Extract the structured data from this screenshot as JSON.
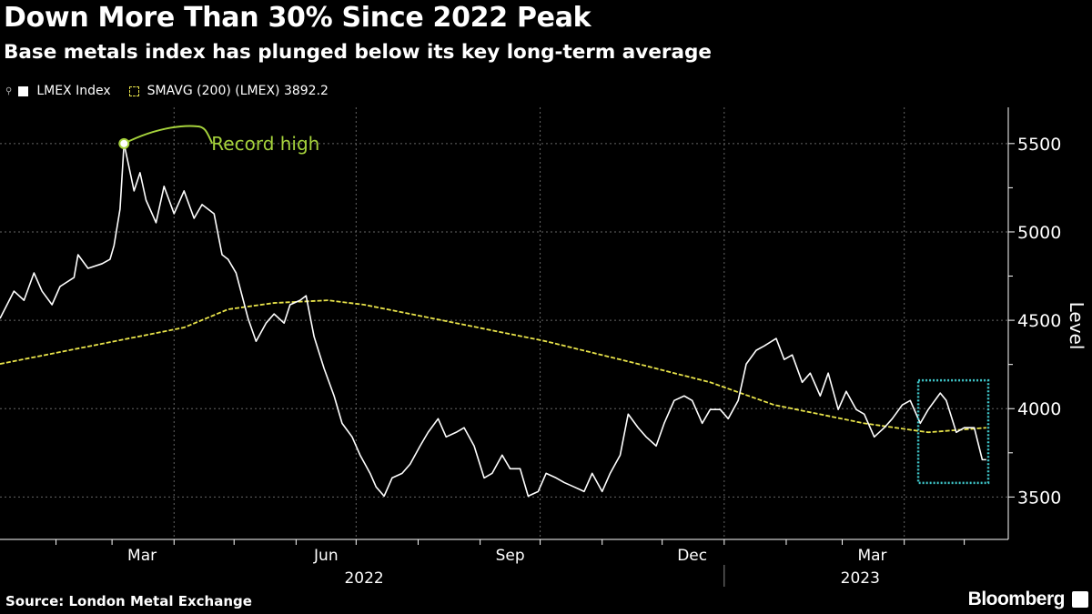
{
  "header": {
    "title": "Down More Than 30% Since 2022 Peak",
    "subtitle": "Base metals index has plunged below its key long-term average"
  },
  "footer": {
    "source": "Source: London Metal Exchange",
    "brand": "Bloomberg"
  },
  "chart_data": {
    "type": "line",
    "title": "Down More Than 30% Since 2022 Peak",
    "subtitle": "Base metals index has plunged below its key long-term average",
    "ylabel": "Level",
    "xlabel": "",
    "ylim": [
      3260,
      5705
    ],
    "xlim": [
      "2022-01-04",
      "2023-05-23"
    ],
    "y_ticks": [
      3500,
      4000,
      4500,
      5000,
      5500
    ],
    "x_tick_labels": [
      {
        "label": "Mar",
        "month": "2022-03"
      },
      {
        "label": "Jun",
        "month": "2022-06"
      },
      {
        "label": "Sep",
        "month": "2022-09"
      },
      {
        "label": "Dec",
        "month": "2022-12"
      },
      {
        "label": "Mar",
        "month": "2023-03"
      }
    ],
    "year_labels": [
      {
        "label": "2022",
        "year": 2022
      },
      {
        "label": "2023",
        "year": 2023
      }
    ],
    "grid": true,
    "legend_position": "top-left",
    "colors": {
      "lmex": "#ffffff",
      "sma": "#e8e34a",
      "annotation": "#a6d33c",
      "highlight": "#3fc6c9"
    },
    "series": [
      {
        "name": "LMEX Index",
        "x": [
          "2022-01-04",
          "2022-01-11",
          "2022-01-16",
          "2022-01-21",
          "2022-01-25",
          "2022-01-30",
          "2022-02-03",
          "2022-02-10",
          "2022-02-12",
          "2022-02-17",
          "2022-02-24",
          "2022-02-28",
          "2022-03-02",
          "2022-03-05",
          "2022-03-07",
          "2022-03-12",
          "2022-03-15",
          "2022-03-18",
          "2022-03-23",
          "2022-03-27",
          "2022-04-01",
          "2022-04-06",
          "2022-04-11",
          "2022-04-15",
          "2022-04-21",
          "2022-04-25",
          "2022-04-28",
          "2022-05-02",
          "2022-05-05",
          "2022-05-08",
          "2022-05-12",
          "2022-05-17",
          "2022-05-21",
          "2022-05-26",
          "2022-05-29",
          "2022-06-03",
          "2022-06-06",
          "2022-06-10",
          "2022-06-15",
          "2022-06-20",
          "2022-06-24",
          "2022-06-29",
          "2022-07-03",
          "2022-07-08",
          "2022-07-11",
          "2022-07-15",
          "2022-07-19",
          "2022-07-24",
          "2022-07-28",
          "2022-08-02",
          "2022-08-06",
          "2022-08-11",
          "2022-08-15",
          "2022-08-20",
          "2022-08-24",
          "2022-08-29",
          "2022-09-03",
          "2022-09-07",
          "2022-09-12",
          "2022-09-16",
          "2022-09-21",
          "2022-09-25",
          "2022-09-30",
          "2022-10-04",
          "2022-10-09",
          "2022-10-13",
          "2022-10-18",
          "2022-10-23",
          "2022-10-27",
          "2022-11-01",
          "2022-11-05",
          "2022-11-10",
          "2022-11-14",
          "2022-11-19",
          "2022-11-23",
          "2022-11-28",
          "2022-12-02",
          "2022-12-07",
          "2022-12-12",
          "2022-12-16",
          "2022-12-21",
          "2022-12-25",
          "2022-12-30",
          "2023-01-03",
          "2023-01-08",
          "2023-01-12",
          "2023-01-17",
          "2023-01-21",
          "2023-01-27",
          "2023-01-31",
          "2023-02-04",
          "2023-02-09",
          "2023-02-13",
          "2023-02-18",
          "2023-02-22",
          "2023-02-27",
          "2023-03-03",
          "2023-03-08",
          "2023-03-12",
          "2023-03-17",
          "2023-03-22",
          "2023-03-26",
          "2023-03-31",
          "2023-04-04",
          "2023-04-09",
          "2023-04-13",
          "2023-04-19",
          "2023-04-22",
          "2023-04-27",
          "2023-05-01",
          "2023-05-06",
          "2023-05-10",
          "2023-05-12"
        ],
        "values": [
          4510,
          4665,
          4613,
          4768,
          4665,
          4588,
          4691,
          4742,
          4871,
          4794,
          4820,
          4845,
          4923,
          5129,
          5500,
          5232,
          5335,
          5180,
          5052,
          5258,
          5103,
          5232,
          5077,
          5155,
          5103,
          4871,
          4845,
          4768,
          4639,
          4510,
          4381,
          4484,
          4536,
          4484,
          4588,
          4613,
          4639,
          4407,
          4227,
          4072,
          3917,
          3840,
          3737,
          3634,
          3557,
          3505,
          3608,
          3634,
          3686,
          3789,
          3866,
          3943,
          3840,
          3866,
          3892,
          3789,
          3608,
          3634,
          3737,
          3660,
          3660,
          3505,
          3531,
          3634,
          3608,
          3582,
          3557,
          3531,
          3634,
          3531,
          3634,
          3737,
          3969,
          3892,
          3840,
          3789,
          3917,
          4046,
          4072,
          4046,
          3917,
          3995,
          3995,
          3943,
          4046,
          4252,
          4330,
          4355,
          4397,
          4278,
          4304,
          4149,
          4201,
          4072,
          4201,
          3995,
          4098,
          3995,
          3969,
          3840,
          3892,
          3943,
          4021,
          4046,
          3917,
          3995,
          4088,
          4046,
          3866,
          3892,
          3892,
          3711,
          3711
        ]
      },
      {
        "name": "SMAVG (200) (LMEX)",
        "last_value_label": "3892.2",
        "x": [
          "2022-01-04",
          "2022-02-19",
          "2022-04-06",
          "2022-04-28",
          "2022-05-21",
          "2022-06-17",
          "2022-07-05",
          "2022-08-20",
          "2022-10-04",
          "2022-11-19",
          "2022-12-25",
          "2023-01-26",
          "2023-03-12",
          "2023-04-13",
          "2023-05-12"
        ],
        "values": [
          4253,
          4356,
          4459,
          4562,
          4598,
          4613,
          4588,
          4484,
          4381,
          4253,
          4149,
          4021,
          3917,
          3866,
          3892
        ]
      }
    ],
    "legend": [
      {
        "label": "LMEX Index"
      },
      {
        "label": "SMAVG (200) (LMEX) 3892.2"
      }
    ],
    "annotations": [
      {
        "text": "Record high",
        "x": "2022-03-07",
        "y": 5500
      },
      {
        "type": "highlight-box",
        "x": [
          "2023-04-08",
          "2023-05-13"
        ],
        "y": [
          3580,
          4160
        ]
      }
    ]
  }
}
